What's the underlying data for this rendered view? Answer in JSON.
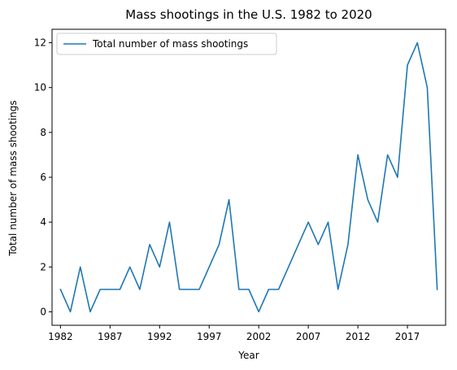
{
  "chart_data": {
    "type": "line",
    "title": "Mass shootings in the U.S. 1982 to 2020",
    "xlabel": "Year",
    "ylabel": "Total number of mass shootings",
    "xlim": [
      1981.15,
      2020.85
    ],
    "ylim": [
      -0.6,
      12.6
    ],
    "x_ticks": [
      1982,
      1987,
      1992,
      1997,
      2002,
      2007,
      2012,
      2017
    ],
    "y_ticks": [
      0,
      2,
      4,
      6,
      8,
      10,
      12
    ],
    "grid": false,
    "legend_position": "upper-left",
    "series": [
      {
        "name": "Total number of mass shootings",
        "color": "#1f77b4",
        "x": [
          1982,
          1983,
          1984,
          1985,
          1986,
          1987,
          1988,
          1989,
          1990,
          1991,
          1992,
          1993,
          1994,
          1995,
          1996,
          1997,
          1998,
          1999,
          2000,
          2001,
          2002,
          2003,
          2004,
          2005,
          2006,
          2007,
          2008,
          2009,
          2010,
          2011,
          2012,
          2013,
          2014,
          2015,
          2016,
          2017,
          2018,
          2019,
          2020
        ],
        "values": [
          1,
          0,
          2,
          0,
          1,
          1,
          1,
          2,
          1,
          3,
          2,
          4,
          1,
          1,
          1,
          2,
          3,
          5,
          1,
          1,
          0,
          1,
          1,
          2,
          3,
          4,
          3,
          4,
          1,
          3,
          7,
          5,
          4,
          7,
          6,
          11,
          12,
          10,
          1
        ]
      }
    ]
  }
}
